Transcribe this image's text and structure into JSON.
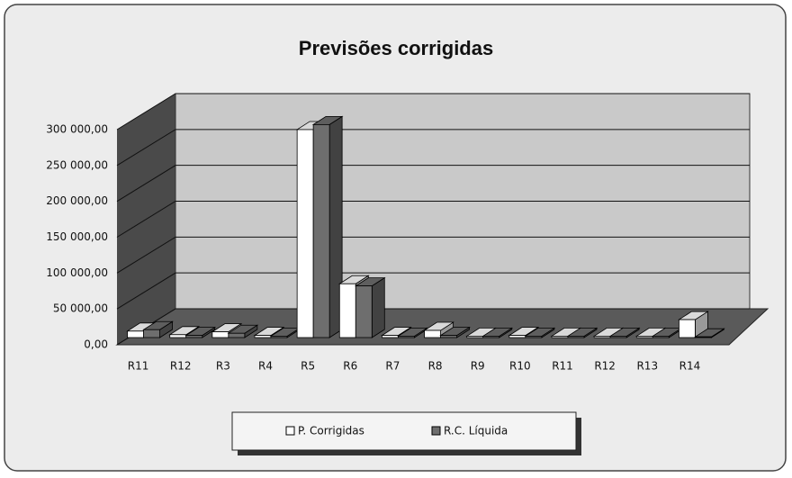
{
  "chart_data": {
    "type": "bar3d",
    "title": "Previsões corrigidas",
    "categories": [
      "R11",
      "R12",
      "R3",
      "R4",
      "R5",
      "R6",
      "R7",
      "R8",
      "R9",
      "R10",
      "R11",
      "R12",
      "R13",
      "R14"
    ],
    "series": [
      {
        "name": "P. Corrigidas",
        "color": "#ffffff",
        "values": [
          9000,
          4000,
          8000,
          3000,
          290000,
          75000,
          3000,
          10000,
          2000,
          3000,
          2000,
          2000,
          2000,
          25000
        ]
      },
      {
        "name": "R.C. Líquida",
        "color": "#6e6e6e",
        "values": [
          11000,
          3000,
          6000,
          2000,
          297000,
          72000,
          2000,
          3000,
          2000,
          2000,
          2000,
          2000,
          2000,
          1000
        ]
      }
    ],
    "ylim": [
      0,
      300000
    ],
    "yticks": [
      {
        "value": 0,
        "label": "0,00"
      },
      {
        "value": 50000,
        "label": "50 000,00"
      },
      {
        "value": 100000,
        "label": "100 000,00"
      },
      {
        "value": 150000,
        "label": "150 000,00"
      },
      {
        "value": 200000,
        "label": "200 000,00"
      },
      {
        "value": 250000,
        "label": "250 000,00"
      },
      {
        "value": 300000,
        "label": "300 000,00"
      }
    ],
    "grid": true,
    "legend": "bottom"
  }
}
